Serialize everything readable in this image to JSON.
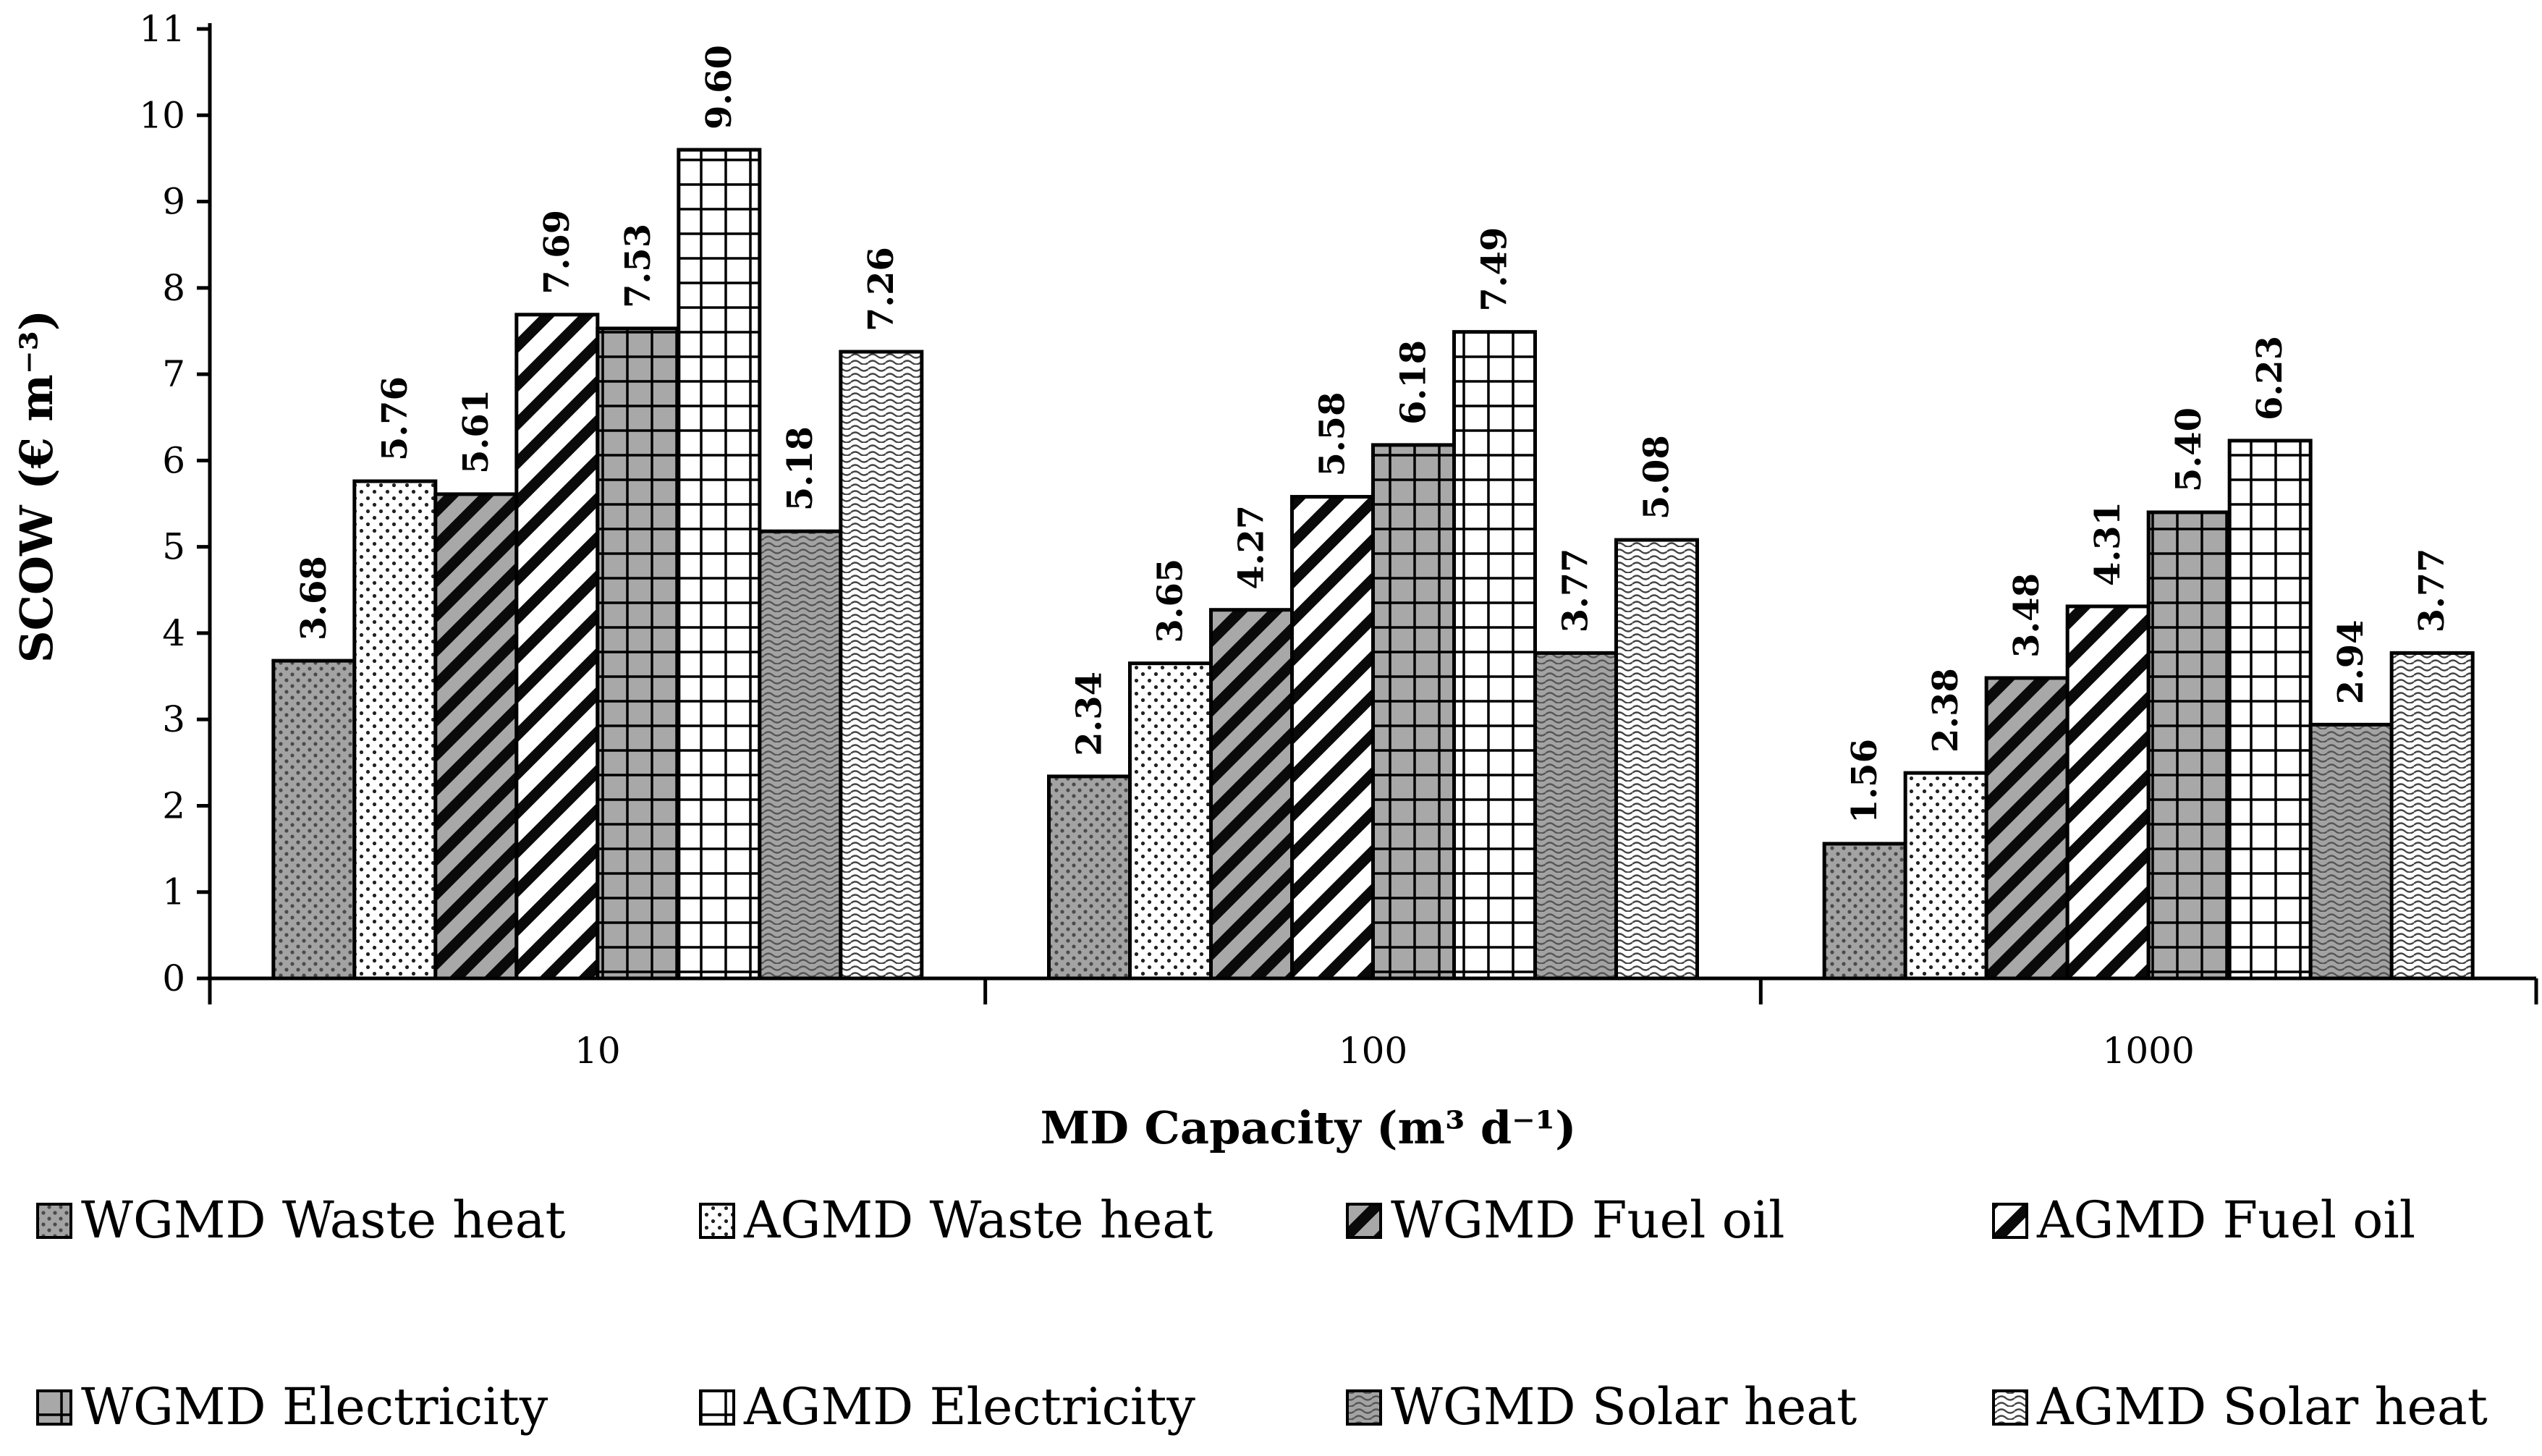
{
  "chart_data": {
    "type": "bar",
    "ylabel": "SCOW (€ m⁻³)",
    "xlabel": "MD Capacity (m³ d⁻¹)",
    "ylim": [
      0,
      11
    ],
    "yticks": [
      "0",
      "1",
      "2",
      "3",
      "4",
      "5",
      "6",
      "7",
      "8",
      "9",
      "10",
      "11"
    ],
    "categories": [
      "10",
      "100",
      "1000"
    ],
    "series": [
      {
        "name": "WGMD Waste heat",
        "pattern": "dots-grey",
        "values": [
          3.68,
          2.34,
          1.56
        ],
        "labels": [
          "3.68",
          "2.34",
          "1.56"
        ]
      },
      {
        "name": "AGMD Waste heat",
        "pattern": "dots-white",
        "values": [
          5.76,
          3.65,
          2.38
        ],
        "labels": [
          "5.76",
          "3.65",
          "2.38"
        ]
      },
      {
        "name": "WGMD Fuel oil",
        "pattern": "diag-grey",
        "values": [
          5.61,
          4.27,
          3.48
        ],
        "labels": [
          "5.61",
          "4.27",
          "3.48"
        ]
      },
      {
        "name": "AGMD Fuel oil",
        "pattern": "diag-white",
        "values": [
          7.69,
          5.58,
          4.31
        ],
        "labels": [
          "7.69",
          "5.58",
          "4.31"
        ]
      },
      {
        "name": "WGMD Electricity",
        "pattern": "grid-grey",
        "values": [
          7.53,
          6.18,
          5.4
        ],
        "labels": [
          "7.53",
          "6.18",
          "5.40"
        ]
      },
      {
        "name": "AGMD Electricity",
        "pattern": "grid-white",
        "values": [
          9.6,
          7.49,
          6.23
        ],
        "labels": [
          "9.60",
          "7.49",
          "6.23"
        ]
      },
      {
        "name": "WGMD Solar heat",
        "pattern": "wave-grey",
        "values": [
          5.18,
          3.77,
          2.94
        ],
        "labels": [
          "5.18",
          "3.77",
          "2.94"
        ]
      },
      {
        "name": "AGMD Solar heat",
        "pattern": "wave-white",
        "values": [
          7.26,
          5.08,
          3.77
        ],
        "labels": [
          "7.26",
          "5.08",
          "3.77"
        ]
      }
    ],
    "legend_position": "bottom",
    "grid": false
  }
}
